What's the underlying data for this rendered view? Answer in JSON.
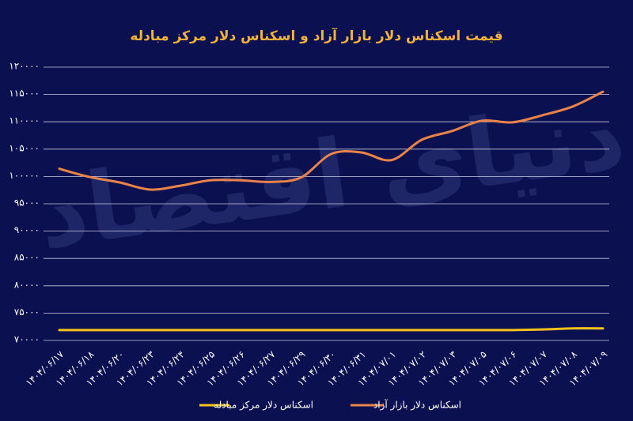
{
  "chart_data": {
    "type": "line",
    "title": "قیمت اسکناس دلار بازار آزاد و اسکناس دلار مرکز مبادله",
    "watermark": "دنیای اقتصاد",
    "categories": [
      "۱۴۰۴/۰۶/۱۷",
      "۱۴۰۴/۰۶/۱۸",
      "۱۴۰۴/۰۶/۲۰",
      "۱۴۰۴/۰۶/۲۳",
      "۱۴۰۴/۰۶/۲۴",
      "۱۴۰۴/۰۶/۲۵",
      "۱۴۰۴/۰۶/۲۶",
      "۱۴۰۴/۰۶/۲۷",
      "۱۴۰۴/۰۶/۲۹",
      "۱۴۰۴/۰۶/۳۰",
      "۱۴۰۴/۰۶/۳۱",
      "۱۴۰۴/۰۷/۰۱",
      "۱۴۰۴/۰۷/۰۲",
      "۱۴۰۴/۰۷/۰۳",
      "۱۴۰۴/۰۷/۰۵",
      "۱۴۰۴/۰۷/۰۶",
      "۱۴۰۴/۰۷/۰۷",
      "۱۴۰۴/۰۷/۰۸",
      "۱۴۰۴/۰۷/۰۹"
    ],
    "series": [
      {
        "name": "اسکناس دلار مرکز مبادله",
        "color": "#f7c21b",
        "values": [
          71900,
          71900,
          71900,
          71900,
          71900,
          71900,
          71900,
          71900,
          71900,
          71900,
          71900,
          71900,
          71900,
          71900,
          71900,
          71900,
          72000,
          72200,
          72200
        ]
      },
      {
        "name": "اسکناس دلار بازار آزاد",
        "color": "#e9834a",
        "values": [
          101400,
          99900,
          98900,
          97600,
          98300,
          99300,
          99300,
          99000,
          99800,
          104100,
          104400,
          103000,
          106700,
          108300,
          110200,
          109900,
          111200,
          112800,
          115500
        ]
      }
    ],
    "ylim": [
      70000,
      120000
    ],
    "yticks": [
      {
        "value": 70000,
        "label": "۷۰۰۰۰"
      },
      {
        "value": 75000,
        "label": "۷۵۰۰۰"
      },
      {
        "value": 80000,
        "label": "۸۰۰۰۰"
      },
      {
        "value": 85000,
        "label": "۸۵۰۰۰"
      },
      {
        "value": 90000,
        "label": "۹۰۰۰۰"
      },
      {
        "value": 95000,
        "label": "۹۵۰۰۰"
      },
      {
        "value": 100000,
        "label": "۱۰۰۰۰۰"
      },
      {
        "value": 105000,
        "label": "۱۰۵۰۰۰"
      },
      {
        "value": 110000,
        "label": "۱۱۰۰۰۰"
      },
      {
        "value": 115000,
        "label": "۱۱۵۰۰۰"
      },
      {
        "value": 120000,
        "label": "۱۲۰۰۰۰"
      }
    ],
    "grid": true
  }
}
